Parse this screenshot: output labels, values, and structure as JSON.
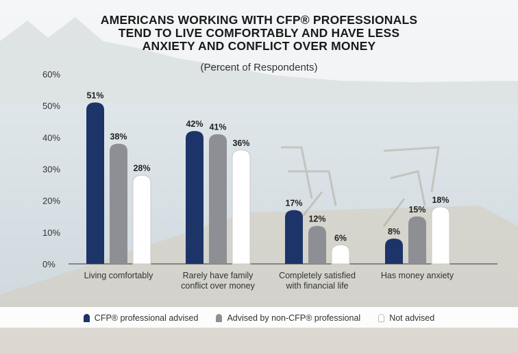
{
  "title_lines": [
    "AMERICANS WORKING WITH CFP® PROFESSIONALS",
    "TEND TO LIVE COMFORTABLY AND HAVE LESS",
    "ANXIETY AND CONFLICT OVER MONEY"
  ],
  "subtitle": "(Percent of Respondents)",
  "colors": {
    "cfp": "#1c3468",
    "non_cfp": "#8e8f94",
    "not_advised": "#ffffff",
    "text": "#222222"
  },
  "chart_data": {
    "type": "bar",
    "title": "AMERICANS WORKING WITH CFP® PROFESSIONALS TEND TO LIVE COMFORTABLY AND HAVE LESS ANXIETY AND CONFLICT OVER MONEY",
    "subtitle": "(Percent of Respondents)",
    "categories": [
      [
        "Living comfortably"
      ],
      [
        "Rarely have family",
        "conflict over money"
      ],
      [
        "Completely satisfied",
        "with financial life"
      ],
      [
        "Has money anxiety"
      ]
    ],
    "series": [
      {
        "name": "CFP® professional advised",
        "values": [
          51,
          42,
          17,
          8
        ],
        "labels": [
          "51%",
          "42%",
          "17%",
          "8%"
        ]
      },
      {
        "name": "Advised by non-CFP® professional",
        "values": [
          38,
          41,
          12,
          15
        ],
        "labels": [
          "38%",
          "41%",
          "12%",
          "15%"
        ]
      },
      {
        "name": "Not advised",
        "values": [
          28,
          36,
          6,
          18
        ],
        "labels": [
          "28%",
          "36%",
          "6%",
          "18%"
        ]
      }
    ],
    "yticks": [
      "0%",
      "10%",
      "20%",
      "30%",
      "40%",
      "50%",
      "60%"
    ],
    "ylim": [
      0,
      60
    ],
    "grid": false,
    "legend_position": "bottom"
  },
  "legend": [
    {
      "label": "CFP® professional advised",
      "color": "#1c3468"
    },
    {
      "label": "Advised by non-CFP® professional",
      "color": "#8e8f94"
    },
    {
      "label": "Not advised",
      "color": "#ffffff"
    }
  ]
}
